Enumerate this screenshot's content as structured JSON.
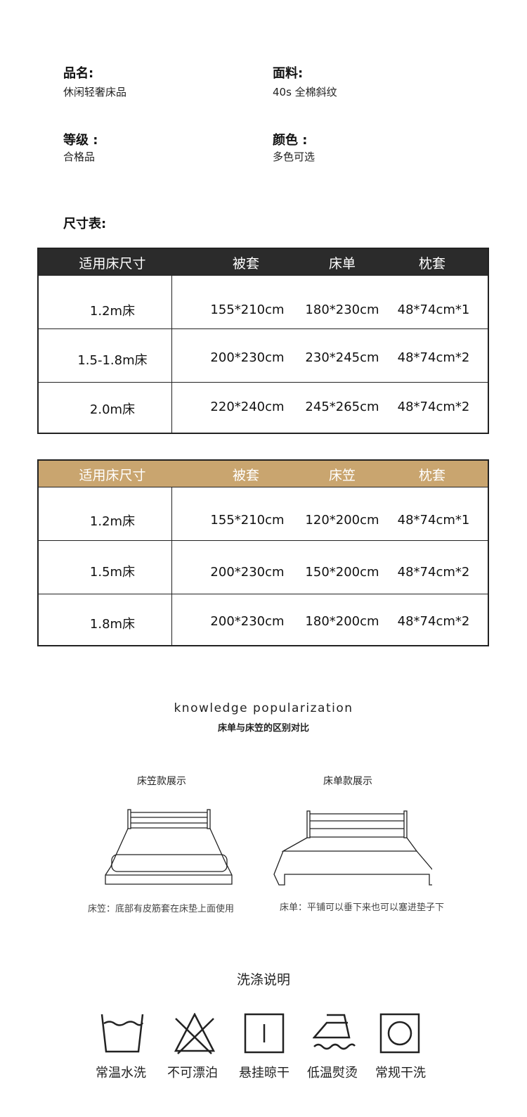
{
  "info": [
    {
      "label": "品名:",
      "value": "休闲轻奢床品"
    },
    {
      "label": "面料:",
      "value": "40s 全棉斜纹"
    },
    {
      "label": "等级 :",
      "value": "合格品"
    },
    {
      "label": "颜色 :",
      "value": "多色可选"
    }
  ],
  "size_title": "尺寸表:",
  "table1": {
    "header_color": "#2b2b2b",
    "headers": [
      "适用床尺寸",
      "被套",
      "床单",
      "枕套"
    ],
    "rows": [
      [
        "1.2m床",
        "155*210cm",
        "180*230cm",
        "48*74cm*1"
      ],
      [
        "1.5-1.8m床",
        "200*230cm",
        "230*245cm",
        "48*74cm*2"
      ],
      [
        "2.0m床",
        "220*240cm",
        "245*265cm",
        "48*74cm*2"
      ]
    ]
  },
  "table2": {
    "header_color": "#c9a56f",
    "headers": [
      "适用床尺寸",
      "被套",
      "床笠",
      "枕套"
    ],
    "rows": [
      [
        "1.2m床",
        "155*210cm",
        "120*200cm",
        "48*74cm*1"
      ],
      [
        "1.5m床",
        "200*230cm",
        "150*200cm",
        "48*74cm*2"
      ],
      [
        "1.8m床",
        "200*230cm",
        "180*200cm",
        "48*74cm*2"
      ]
    ]
  },
  "knowledge": {
    "title_en": "knowledge popularization",
    "title_cn": "床单与床笠的区别对比",
    "left": {
      "title": "床笠款展示",
      "caption": "床笠：底部有皮筋套在床垫上面使用"
    },
    "right": {
      "title": "床单款展示",
      "caption": "床单：平铺可以垂下来也可以塞进垫子下"
    }
  },
  "wash": {
    "title": "洗涤说明",
    "items": [
      {
        "icon": "wash-30-icon",
        "label": "常温水洗"
      },
      {
        "icon": "no-bleach-icon",
        "label": "不可漂泊"
      },
      {
        "icon": "hang-dry-icon",
        "label": "悬挂晾干"
      },
      {
        "icon": "low-iron-icon",
        "label": "低温熨烫"
      },
      {
        "icon": "dry-clean-icon",
        "label": "常规干洗"
      }
    ]
  }
}
